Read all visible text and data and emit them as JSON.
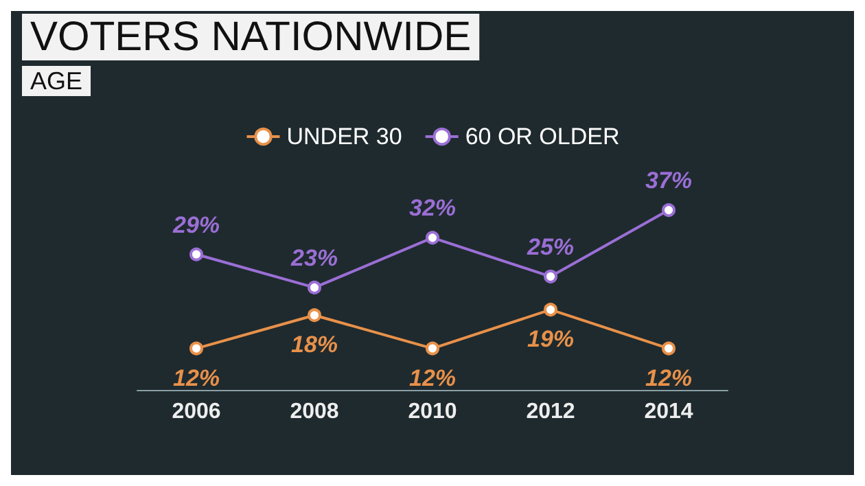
{
  "chart_data": {
    "type": "line",
    "title": "VOTERS NATIONWIDE",
    "subtitle": "AGE",
    "categories": [
      "2006",
      "2008",
      "2010",
      "2012",
      "2014"
    ],
    "series": [
      {
        "name": "UNDER 30",
        "color": "#e8914a",
        "values": [
          12,
          18,
          12,
          19,
          12
        ],
        "value_labels": [
          "12%",
          "18%",
          "12%",
          "19%",
          "12%"
        ]
      },
      {
        "name": "60 OR OLDER",
        "color": "#9b6fd6",
        "values": [
          29,
          23,
          32,
          25,
          37
        ],
        "value_labels": [
          "29%",
          "23%",
          "32%",
          "25%",
          "37%"
        ]
      }
    ],
    "legend": "top",
    "marker": "circle",
    "line_style": "solid",
    "grid": false
  }
}
